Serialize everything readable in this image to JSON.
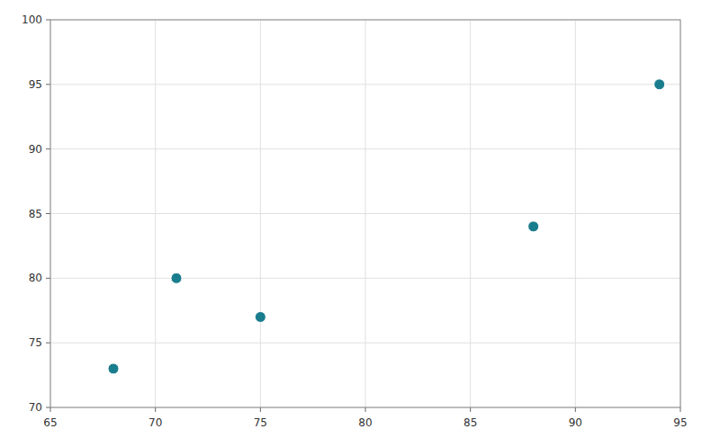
{
  "chart_data": {
    "type": "scatter",
    "x": [
      68,
      71,
      75,
      88,
      94
    ],
    "values": [
      73,
      80,
      77,
      84,
      95
    ],
    "color": "#1a7d8e",
    "xlim": [
      65,
      95
    ],
    "ylim": [
      70,
      100
    ],
    "xticks": [
      65,
      70,
      75,
      80,
      85,
      90,
      95
    ],
    "yticks": [
      70,
      75,
      80,
      85,
      90,
      95,
      100
    ],
    "grid": true
  }
}
